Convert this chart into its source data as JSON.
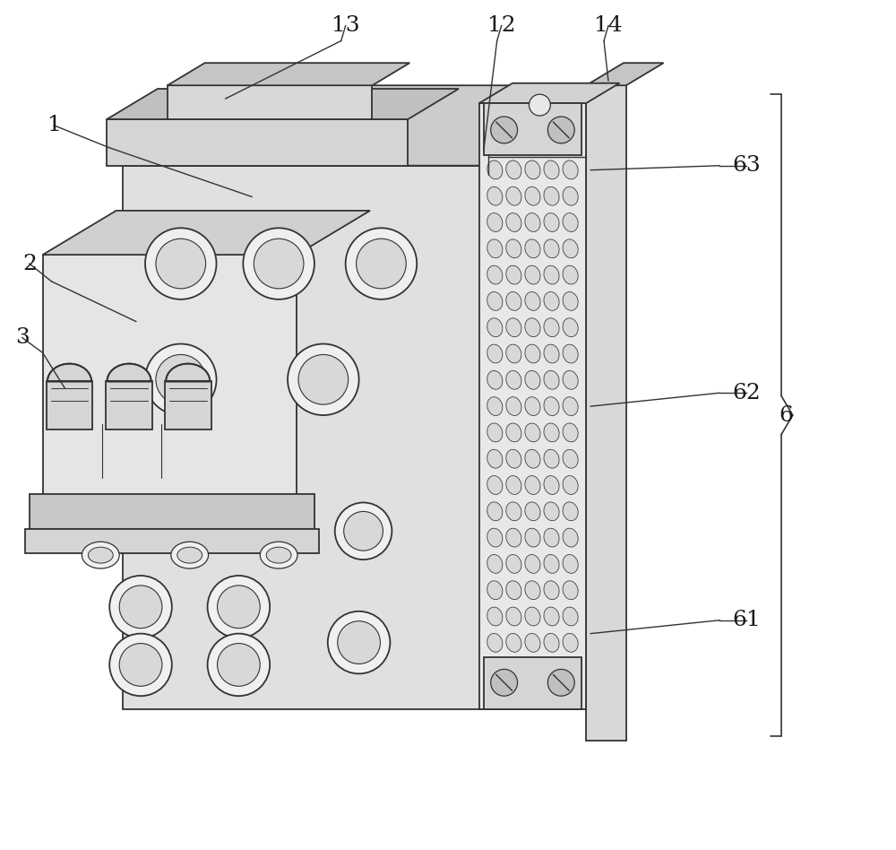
{
  "bg_color": "#ffffff",
  "lc": "#333333",
  "lw": 1.3,
  "face_front": "#e8e8e8",
  "face_top": "#d0d0d0",
  "face_right": "#c0c0c0",
  "face_side": "#b8b8b8",
  "face_light": "#f0f0f0",
  "pad_color": "#c8c8c8",
  "labels": [
    "1",
    "2",
    "3",
    "6",
    "12",
    "13",
    "14",
    "61",
    "62",
    "63"
  ]
}
